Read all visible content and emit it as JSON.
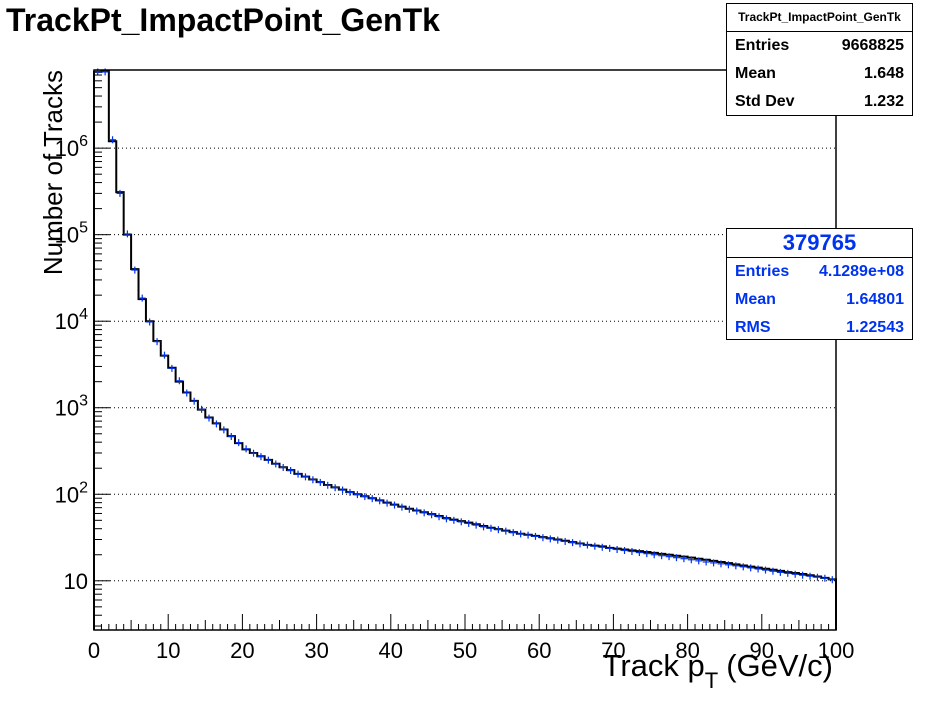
{
  "chart_data": {
    "type": "bar",
    "title": "TrackPt_ImpactPoint_GenTk",
    "xlabel_main": "Track p",
    "xlabel_sub": "T",
    "xlabel_unit": "(GeV/c)",
    "ylabel": "Number of Tracks",
    "xlim": [
      0,
      100
    ],
    "ylim": [
      2.7,
      8000000
    ],
    "log_y": true,
    "grid_y": true,
    "x_ticks": [
      "0",
      "10",
      "20",
      "30",
      "40",
      "50",
      "60",
      "70",
      "80",
      "90",
      "100"
    ],
    "y_ticks": [
      {
        "value": 10,
        "base": "10",
        "exp": ""
      },
      {
        "value": 100,
        "base": "10",
        "exp": "2"
      },
      {
        "value": 1000,
        "base": "10",
        "exp": "3"
      },
      {
        "value": 10000,
        "base": "10",
        "exp": "4"
      },
      {
        "value": 100000,
        "base": "10",
        "exp": "5"
      },
      {
        "value": 1000000,
        "base": "10",
        "exp": "6"
      }
    ],
    "bin_width": 1,
    "series": [
      {
        "name": "TrackPt_ImpactPoint_GenTk",
        "color": "#000000",
        "style": "step",
        "values": [
          7600000,
          7700000,
          1200000,
          310000,
          100000,
          40000,
          18000,
          10000,
          5900,
          4000,
          2900,
          2000,
          1500,
          1200,
          950,
          770,
          660,
          560,
          470,
          390,
          330,
          300,
          275,
          250,
          225,
          205,
          190,
          172,
          160,
          148,
          138,
          128,
          120,
          113,
          106,
          100,
          95,
          90,
          85,
          80,
          76,
          72,
          68,
          65,
          62,
          59,
          56,
          53,
          51,
          49,
          47,
          45,
          43,
          41,
          39.5,
          38,
          36.5,
          35,
          34,
          33,
          32,
          31,
          30,
          29,
          28,
          27,
          26,
          25.5,
          25,
          24,
          23.5,
          23,
          22.5,
          22,
          21.5,
          21,
          20.5,
          20,
          19.5,
          19,
          18.5,
          18,
          17.5,
          17,
          16.5,
          16,
          15.5,
          15,
          14.6,
          14.2,
          13.8,
          13.4,
          13,
          12.6,
          12.3,
          12,
          11.6,
          11.2,
          10.8,
          10.4
        ]
      },
      {
        "name": "379765",
        "color": "#0033ee",
        "style": "markers",
        "values": [
          7600000,
          7600000,
          1250000,
          300000,
          102000,
          39000,
          18500,
          9800,
          5800,
          4050,
          2850,
          2050,
          1480,
          1190,
          960,
          760,
          650,
          555,
          465,
          395,
          335,
          298,
          272,
          248,
          224,
          204,
          188,
          171,
          159,
          147,
          137,
          127,
          119,
          112,
          105,
          99,
          94,
          89,
          84,
          79,
          75,
          71,
          67,
          64,
          61,
          58,
          55,
          52,
          50,
          48,
          46,
          44,
          42,
          40.5,
          39,
          37.5,
          36,
          34.8,
          33.7,
          32.6,
          31.5,
          30.5,
          29.5,
          28.5,
          27.6,
          26.7,
          25.9,
          25.1,
          24.4,
          23.7,
          23,
          22.4,
          21.8,
          21.2,
          20.6,
          20,
          19.5,
          19,
          18.5,
          18,
          17.5,
          17,
          16.5,
          16.1,
          15.7,
          15.3,
          14.9,
          14.5,
          14.1,
          13.7,
          13.3,
          12.9,
          12.5,
          12.2,
          11.9,
          11.6,
          11.3,
          11,
          10.7,
          10.3
        ]
      }
    ]
  },
  "stats_main": {
    "title": "TrackPt_ImpactPoint_GenTk",
    "rows": [
      {
        "label": "Entries",
        "value": "9668825"
      },
      {
        "label": "Mean",
        "value": "1.648"
      },
      {
        "label": "Std Dev",
        "value": "1.232"
      }
    ]
  },
  "stats_ref": {
    "title": "379765",
    "rows": [
      {
        "label": "Entries",
        "value": "4.1289e+08"
      },
      {
        "label": "Mean",
        "value": "1.64801"
      },
      {
        "label": "RMS",
        "value": "1.22543"
      }
    ]
  }
}
